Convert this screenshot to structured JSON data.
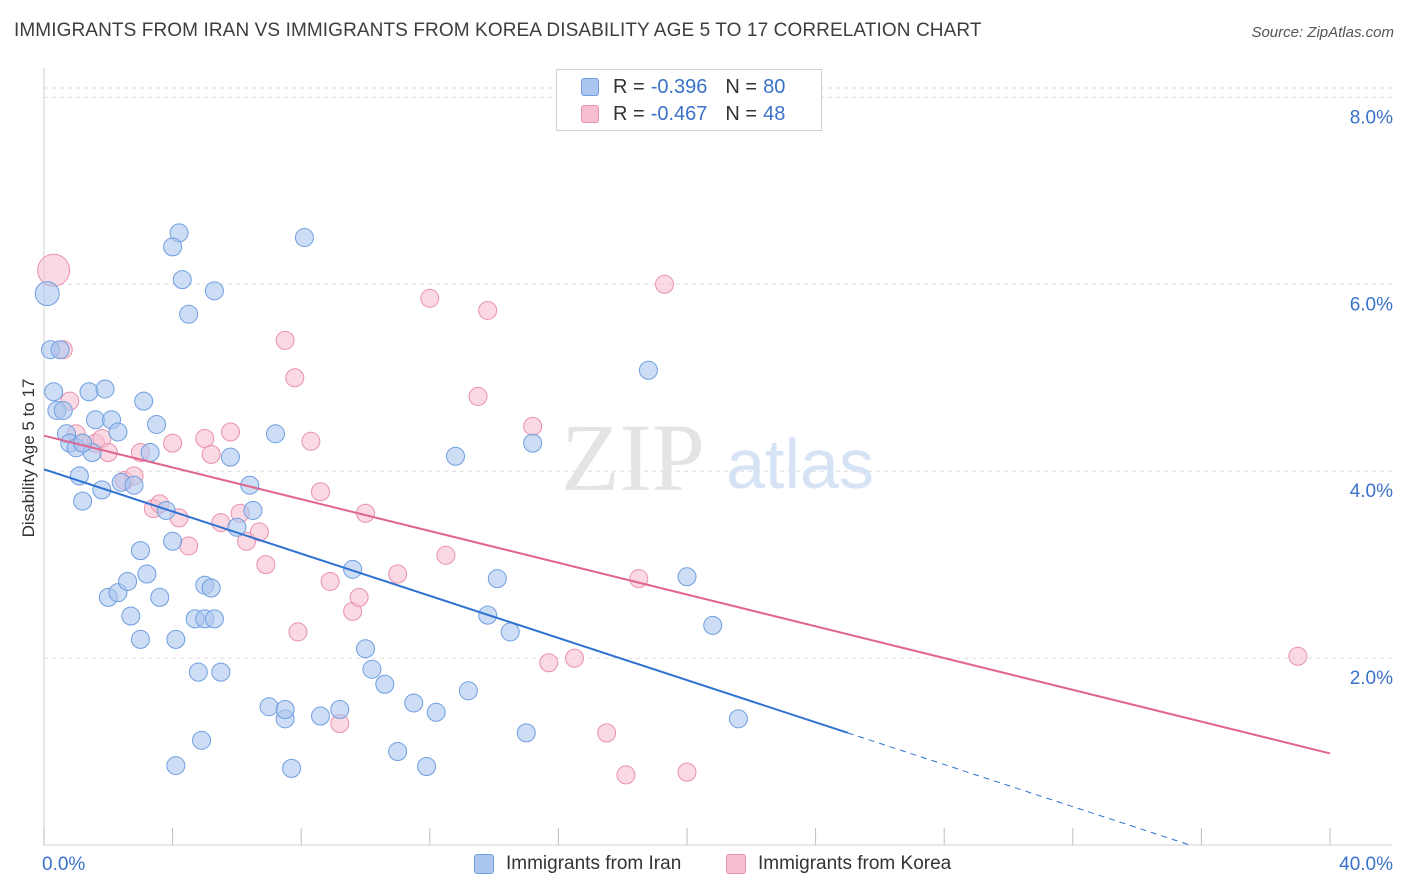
{
  "header": {
    "title": "IMMIGRANTS FROM IRAN VS IMMIGRANTS FROM KOREA DISABILITY AGE 5 TO 17 CORRELATION CHART",
    "source": "Source: ZipAtlas.com"
  },
  "watermark": {
    "zip": "ZIP",
    "atlas": "atlas"
  },
  "stats": {
    "iran": {
      "r_label": "R =",
      "r_value": "-0.396",
      "n_label": "N =",
      "n_value": "80"
    },
    "korea": {
      "r_label": "R =",
      "r_value": "-0.467",
      "n_label": "N =",
      "n_value": "48"
    }
  },
  "legend": {
    "iran": "Immigrants from Iran",
    "korea": "Immigrants from Korea"
  },
  "colors": {
    "iran_fill": "#aac6ef",
    "iran_stroke": "#6f9ee0",
    "iran_line": "#2f72d1",
    "korea_fill": "#f6bfd1",
    "korea_stroke": "#e991ad",
    "korea_line": "#e06690",
    "tick_label": "#3a72c9",
    "grid": "#dcdcdc"
  },
  "chart_data": {
    "type": "scatter",
    "title": "IMMIGRANTS FROM IRAN VS IMMIGRANTS FROM KOREA DISABILITY AGE 5 TO 17 CORRELATION CHART",
    "xlabel": "",
    "ylabel": "Disability Age 5 to 17",
    "xlim": [
      0,
      40
    ],
    "ylim": [
      0,
      8.4
    ],
    "x_tick_labels": [
      {
        "value": 0,
        "label": "0.0%"
      },
      {
        "value": 40,
        "label": "40.0%"
      }
    ],
    "y_tick_labels": [
      {
        "value": 2,
        "label": "2.0%"
      },
      {
        "value": 4,
        "label": "4.0%"
      },
      {
        "value": 6,
        "label": "6.0%"
      },
      {
        "value": 8,
        "label": "8.0%"
      }
    ],
    "grid": "horizontal dashed",
    "legend_position": "bottom",
    "series": [
      {
        "name": "Immigrants from Iran",
        "r": -0.396,
        "n": 80,
        "trend": {
          "x0": 0,
          "y0": 4.02,
          "x1": 25.0,
          "y1": 1.2,
          "dashed_to_x": 40
        },
        "points": [
          [
            0.1,
            5.9,
            12
          ],
          [
            0.2,
            5.3,
            9
          ],
          [
            0.3,
            4.85,
            9
          ],
          [
            0.4,
            4.65,
            9
          ],
          [
            0.6,
            4.65,
            9
          ],
          [
            0.7,
            4.4,
            9
          ],
          [
            0.8,
            4.3,
            9
          ],
          [
            1.0,
            4.25,
            9
          ],
          [
            1.1,
            3.95,
            9
          ],
          [
            1.2,
            3.68,
            9
          ],
          [
            1.4,
            4.85,
            9
          ],
          [
            1.5,
            4.2,
            9
          ],
          [
            1.6,
            4.55,
            9
          ],
          [
            1.8,
            3.8,
            9
          ],
          [
            1.9,
            4.88,
            9
          ],
          [
            2.1,
            4.55,
            9
          ],
          [
            2.3,
            4.42,
            9
          ],
          [
            2.4,
            3.88,
            9
          ],
          [
            2.0,
            2.65,
            9
          ],
          [
            2.3,
            2.7,
            9
          ],
          [
            2.6,
            2.82,
            9
          ],
          [
            2.7,
            2.45,
            9
          ],
          [
            3.0,
            2.2,
            9
          ],
          [
            3.0,
            3.15,
            9
          ],
          [
            3.1,
            4.75,
            9
          ],
          [
            3.2,
            2.9,
            9
          ],
          [
            3.3,
            4.2,
            9
          ],
          [
            3.5,
            4.5,
            9
          ],
          [
            3.6,
            2.65,
            9
          ],
          [
            3.8,
            3.58,
            9
          ],
          [
            4.0,
            3.25,
            9
          ],
          [
            4.1,
            2.2,
            9
          ],
          [
            4.1,
            0.85,
            9
          ],
          [
            4.3,
            6.05,
            9
          ],
          [
            4.2,
            6.55,
            9
          ],
          [
            4.0,
            6.4,
            9
          ],
          [
            4.5,
            5.68,
            9
          ],
          [
            4.7,
            2.42,
            9
          ],
          [
            4.8,
            1.85,
            9
          ],
          [
            4.9,
            1.12,
            9
          ],
          [
            5.0,
            2.42,
            9
          ],
          [
            5.0,
            2.78,
            9
          ],
          [
            5.2,
            2.75,
            9
          ],
          [
            5.3,
            2.42,
            9
          ],
          [
            5.3,
            5.93,
            9
          ],
          [
            5.5,
            1.85,
            9
          ],
          [
            6.0,
            3.4,
            9
          ],
          [
            6.4,
            3.85,
            9
          ],
          [
            6.5,
            3.58,
            9
          ],
          [
            7.0,
            1.48,
            9
          ],
          [
            7.2,
            4.4,
            9
          ],
          [
            7.5,
            1.35,
            9
          ],
          [
            7.5,
            1.45,
            9
          ],
          [
            7.7,
            0.82,
            9
          ],
          [
            8.1,
            6.5,
            9
          ],
          [
            8.6,
            1.38,
            9
          ],
          [
            9.2,
            1.45,
            9
          ],
          [
            9.6,
            2.95,
            9
          ],
          [
            10.0,
            2.1,
            9
          ],
          [
            10.2,
            1.88,
            9
          ],
          [
            10.6,
            1.72,
            9
          ],
          [
            11.0,
            1.0,
            9
          ],
          [
            11.5,
            1.52,
            9
          ],
          [
            11.9,
            0.84,
            9
          ],
          [
            12.2,
            1.42,
            9
          ],
          [
            12.8,
            4.16,
            9
          ],
          [
            13.2,
            1.65,
            9
          ],
          [
            13.8,
            2.46,
            9
          ],
          [
            14.1,
            2.85,
            9
          ],
          [
            14.5,
            2.28,
            9
          ],
          [
            15.0,
            1.2,
            9
          ],
          [
            15.2,
            4.3,
            9
          ],
          [
            18.8,
            5.08,
            9
          ],
          [
            20.0,
            2.87,
            9
          ],
          [
            20.8,
            2.35,
            9
          ],
          [
            21.6,
            1.35,
            9
          ],
          [
            0.5,
            5.3,
            9
          ],
          [
            1.2,
            4.3,
            9
          ],
          [
            2.8,
            3.85,
            9
          ],
          [
            5.8,
            4.15,
            9
          ]
        ]
      },
      {
        "name": "Immigrants from Korea",
        "r": -0.467,
        "n": 48,
        "trend": {
          "x0": 0,
          "y0": 4.38,
          "x1": 40,
          "y1": 0.98
        },
        "points": [
          [
            0.3,
            6.15,
            16
          ],
          [
            0.6,
            5.3,
            9
          ],
          [
            0.8,
            4.75,
            9
          ],
          [
            1.0,
            4.4,
            9
          ],
          [
            1.2,
            4.3,
            9
          ],
          [
            1.6,
            4.3,
            9
          ],
          [
            1.8,
            4.35,
            9
          ],
          [
            2.0,
            4.2,
            9
          ],
          [
            2.5,
            3.9,
            9
          ],
          [
            2.8,
            3.95,
            9
          ],
          [
            3.0,
            4.2,
            9
          ],
          [
            3.4,
            3.6,
            9
          ],
          [
            3.6,
            3.65,
            9
          ],
          [
            4.0,
            4.3,
            9
          ],
          [
            4.2,
            3.5,
            9
          ],
          [
            4.5,
            3.2,
            9
          ],
          [
            5.0,
            4.35,
            9
          ],
          [
            5.2,
            4.18,
            9
          ],
          [
            5.5,
            3.45,
            9
          ],
          [
            5.8,
            4.42,
            9
          ],
          [
            6.1,
            3.55,
            9
          ],
          [
            6.3,
            3.25,
            9
          ],
          [
            6.7,
            3.35,
            9
          ],
          [
            6.9,
            3.0,
            9
          ],
          [
            7.5,
            5.4,
            9
          ],
          [
            7.8,
            5.0,
            9
          ],
          [
            7.9,
            2.28,
            9
          ],
          [
            8.3,
            4.32,
            9
          ],
          [
            8.6,
            3.78,
            9
          ],
          [
            8.9,
            2.82,
            9
          ],
          [
            9.2,
            1.3,
            9
          ],
          [
            9.6,
            2.5,
            9
          ],
          [
            9.8,
            2.65,
            9
          ],
          [
            10.0,
            3.55,
            9
          ],
          [
            11.0,
            2.9,
            9
          ],
          [
            12.0,
            5.85,
            9
          ],
          [
            12.5,
            3.1,
            9
          ],
          [
            13.5,
            4.8,
            9
          ],
          [
            13.8,
            5.72,
            9
          ],
          [
            15.2,
            4.48,
            9
          ],
          [
            15.7,
            1.95,
            9
          ],
          [
            16.5,
            2.0,
            9
          ],
          [
            17.5,
            1.2,
            9
          ],
          [
            18.1,
            0.75,
            9
          ],
          [
            18.5,
            2.85,
            9
          ],
          [
            19.3,
            6.0,
            9
          ],
          [
            20.0,
            0.78,
            9
          ],
          [
            39.0,
            2.02,
            9
          ]
        ]
      }
    ]
  }
}
